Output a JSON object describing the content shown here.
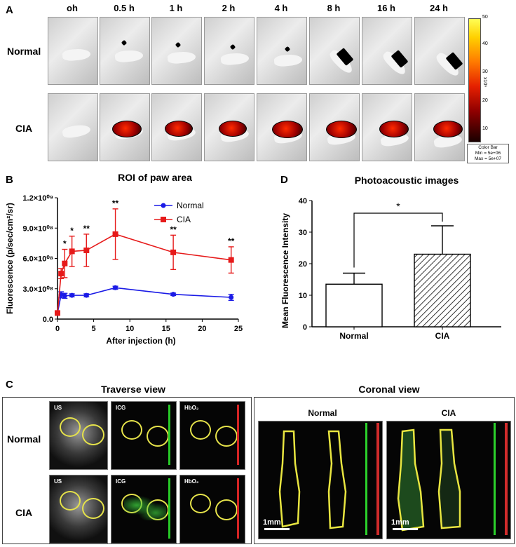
{
  "panel_a": {
    "letter": "A",
    "timepoints": [
      "oh",
      "0.5 h",
      "1 h",
      "2 h",
      "4 h",
      "8 h",
      "16 h",
      "24 h"
    ],
    "rows": [
      "Normal",
      "CIA"
    ],
    "colorbar": {
      "ticks": [
        "50",
        "40",
        "30",
        "20",
        "10"
      ],
      "exponent_label": "x10⁶",
      "box_lines": [
        "Color Bar",
        "Min = 5e+06",
        "Max = 5e+07"
      ],
      "colors": [
        "#ffff55",
        "#ffb000",
        "#ff3a00",
        "#b00000",
        "#300000"
      ]
    }
  },
  "panel_b": {
    "letter": "B",
    "legend": {
      "normal": "Normal",
      "cia": "CIA"
    },
    "colors": {
      "normal": "#1a1ae6",
      "cia": "#e61a1a"
    }
  },
  "panel_d": {
    "letter": "D",
    "significance": "*"
  },
  "panel_c": {
    "letter": "C",
    "traverse_title": "Traverse view",
    "coronal_title": "Coronal view",
    "rows": [
      "Normal",
      "CIA"
    ],
    "modalities": [
      "US",
      "ICG",
      "HbO₂"
    ],
    "coronal_cols": [
      "Normal",
      "CIA"
    ],
    "scale_bar": "1mm"
  },
  "chart_data": [
    {
      "type": "line",
      "title": "ROI of paw area",
      "xlabel": "After injection (h)",
      "ylabel": "Fluorescence (p/sec/cm²/sr)",
      "xlim": [
        0,
        25
      ],
      "ylim": [
        0,
        1200000000.0
      ],
      "x_ticks": [
        "0",
        "5",
        "10",
        "15",
        "20",
        "25"
      ],
      "y_ticks": [
        "0.0",
        "3.0×10⁰⁸",
        "6.0×10⁰⁸",
        "9.0×10⁰⁸",
        "1.2×10⁰⁹"
      ],
      "legend_position": "top-right",
      "series": [
        {
          "name": "Normal",
          "marker": "circle",
          "x": [
            0,
            0.5,
            1,
            2,
            4,
            8,
            16,
            24
          ],
          "y": [
            60000000.0,
            240000000.0,
            230000000.0,
            235000000.0,
            235000000.0,
            310000000.0,
            245000000.0,
            215000000.0
          ],
          "error": [
            0,
            30000000.0,
            25000000.0,
            15000000.0,
            15000000.0,
            15000000.0,
            12000000.0,
            30000000.0
          ]
        },
        {
          "name": "CIA",
          "marker": "square",
          "x": [
            0,
            0.5,
            1,
            2,
            4,
            8,
            16,
            24
          ],
          "y": [
            60000000.0,
            450000000.0,
            550000000.0,
            670000000.0,
            680000000.0,
            840000000.0,
            660000000.0,
            585000000.0
          ],
          "error": [
            0,
            50000000.0,
            140000000.0,
            150000000.0,
            160000000.0,
            250000000.0,
            170000000.0,
            130000000.0
          ],
          "significance": [
            "",
            "",
            "*",
            "*",
            "**",
            "**",
            "**",
            "**"
          ]
        }
      ]
    },
    {
      "type": "bar",
      "title": "Photoacoustic images",
      "ylabel": "Mean Fluorescence Intensity",
      "categories": [
        "Normal",
        "CIA"
      ],
      "values": [
        13.5,
        23
      ],
      "errors": [
        3.5,
        9
      ],
      "ylim": [
        0,
        40
      ],
      "y_ticks": [
        "0",
        "10",
        "20",
        "30",
        "40"
      ],
      "significance": "*"
    }
  ]
}
